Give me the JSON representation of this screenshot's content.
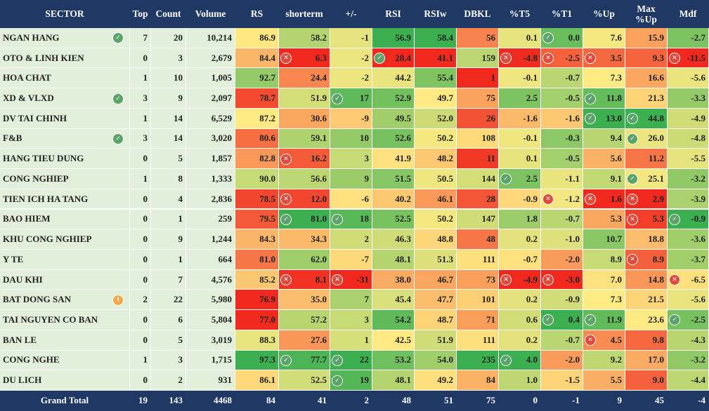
{
  "table": {
    "headers": [
      "SECTOR",
      "Top",
      "Count",
      "Volume",
      "RS",
      "shorterm",
      "+/-",
      "RSI",
      "RSIw",
      "DBKL",
      "%T5",
      "%T1",
      "%Up",
      "Max %Up",
      "Mdf"
    ],
    "rows": [
      [
        "NGAN HANG",
        "7",
        "20",
        "10,214",
        "86.9",
        "58.2",
        "-1",
        "56.9",
        "58.4",
        "56",
        "0.1",
        "0.0",
        "7.6",
        "15.9",
        "-2.7"
      ],
      [
        "OTO & LINH KIEN",
        "0",
        "3",
        "2,679",
        "84.4",
        "6.3",
        "-2",
        "28.4",
        "41.1",
        "159",
        "-4.8",
        "-2.5",
        "3.5",
        "9.3",
        "-11.5"
      ],
      [
        "HOA CHAT",
        "1",
        "10",
        "1,005",
        "92.7",
        "24.4",
        "-2",
        "44.2",
        "55.4",
        "1",
        "-0.1",
        "-0.7",
        "7.3",
        "16.6",
        "-5.6"
      ],
      [
        "XD & VLXD",
        "3",
        "9",
        "2,097",
        "78.7",
        "51.9",
        "17",
        "52.9",
        "49.7",
        "75",
        "2.5",
        "-0.5",
        "11.8",
        "21.3",
        "-3.3"
      ],
      [
        "DV TAI CHINH",
        "1",
        "14",
        "6,529",
        "87.2",
        "30.6",
        "-9",
        "49.5",
        "52.0",
        "26",
        "-1.6",
        "-1.6",
        "13.0",
        "44.8",
        "-4.9"
      ],
      [
        "F&B",
        "3",
        "14",
        "3,020",
        "80.6",
        "59.1",
        "10",
        "52.6",
        "50.2",
        "108",
        "-0.1",
        "-0.3",
        "9.4",
        "26.0",
        "-4.8"
      ],
      [
        "HANG TIEU DUNG",
        "0",
        "5",
        "1,857",
        "82.8",
        "16.2",
        "3",
        "41.9",
        "48.2",
        "11",
        "0.1",
        "-0.5",
        "5.6",
        "11.2",
        "-5.5"
      ],
      [
        "CONG NGHIEP",
        "1",
        "8",
        "1,333",
        "90.0",
        "56.6",
        "9",
        "51.5",
        "50.5",
        "144",
        "2.5",
        "-1.1",
        "9.1",
        "25.1",
        "-3.2"
      ],
      [
        "TIEN ICH HA TANG",
        "0",
        "4",
        "2,836",
        "78.5",
        "12.0",
        "-6",
        "40.2",
        "46.1",
        "28",
        "-0.9",
        "-1.2",
        "1.6",
        "2.9",
        "-3.9"
      ],
      [
        "BAO HIEM",
        "0",
        "1",
        "259",
        "79.5",
        "81.0",
        "18",
        "52.5",
        "50.2",
        "147",
        "1.8",
        "-0.7",
        "5.3",
        "5.3",
        "-0.9"
      ],
      [
        "KHU CONG NGHIEP",
        "0",
        "9",
        "1,244",
        "84.3",
        "34.3",
        "2",
        "46.3",
        "48.8",
        "48",
        "0.2",
        "-1.0",
        "10.7",
        "18.8",
        "-3.6"
      ],
      [
        "Y TE",
        "0",
        "1",
        "664",
        "81.0",
        "62.0",
        "-7",
        "48.1",
        "51.3",
        "111",
        "-0.7",
        "-2.0",
        "8.9",
        "8.9",
        "-3.7"
      ],
      [
        "DAU KHI",
        "0",
        "7",
        "4,576",
        "85.2",
        "8.1",
        "-31",
        "38.0",
        "46.7",
        "73",
        "-4.9",
        "-3.0",
        "7.0",
        "14.8",
        "-6.5"
      ],
      [
        "BAT DONG SAN",
        "2",
        "22",
        "5,980",
        "76.9",
        "35.0",
        "7",
        "45.4",
        "47.7",
        "101",
        "0.2",
        "-0.9",
        "7.3",
        "21.5",
        "-5.6"
      ],
      [
        "TAI NGUYEN CO BAN",
        "0",
        "6",
        "5,804",
        "77.0",
        "57.2",
        "3",
        "54.2",
        "48.7",
        "71",
        "0.6",
        "0.4",
        "11.9",
        "23.6",
        "-2.5"
      ],
      [
        "BAN LE",
        "0",
        "5",
        "3,019",
        "88.3",
        "27.6",
        "1",
        "42.5",
        "51.9",
        "111",
        "0.2",
        "-0.7",
        "4.5",
        "9.8",
        "-4.3"
      ],
      [
        "CONG NGHE",
        "1",
        "3",
        "1,715",
        "97.3",
        "77.7",
        "22",
        "53.2",
        "54.0",
        "235",
        "4.0",
        "-2.0",
        "9.2",
        "17.0",
        "-3.2"
      ],
      [
        "DU LICH",
        "0",
        "2",
        "931",
        "86.1",
        "52.5",
        "19",
        "48.1",
        "49.2",
        "84",
        "1.0",
        "-1.5",
        "5.5",
        "9.0",
        "-4.4"
      ]
    ],
    "total": [
      "Grand Total",
      "19",
      "143",
      "4468",
      "84",
      "41",
      "2",
      "48",
      "51",
      "75",
      "0",
      "-1",
      "9",
      "45",
      "-4"
    ]
  }
}
